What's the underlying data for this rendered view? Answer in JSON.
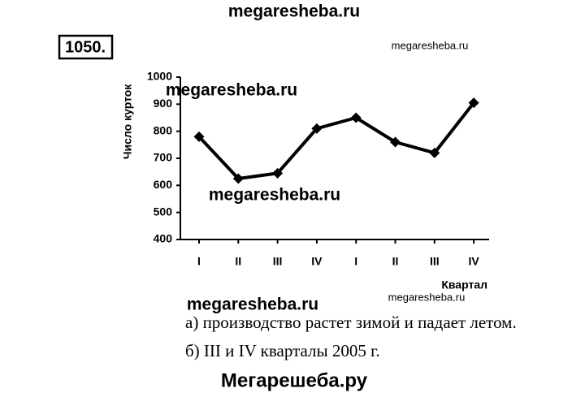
{
  "watermarks": [
    "megaresheba.ru",
    "megaresheba.ru",
    "megaresheba.ru",
    "megaresheba.ru",
    "megaresheba.ru",
    "megaresheba.ru"
  ],
  "problem_number": "1050.",
  "chart_data": {
    "type": "line",
    "ylabel": "Число курток",
    "xlabel": "Квартал",
    "categories": [
      "I",
      "II",
      "III",
      "IV",
      "I",
      "II",
      "III",
      "IV"
    ],
    "series": [
      {
        "name": null,
        "color": "#000000",
        "values": [
          780,
          625,
          645,
          810,
          850,
          760,
          720,
          905
        ]
      }
    ],
    "ylim": [
      400,
      1000
    ],
    "yticks": [
      400,
      500,
      600,
      700,
      800,
      900,
      1000
    ],
    "grid": false
  },
  "answers": [
    "а) производство растет зимой и падает летом.",
    "б) III и IV кварталы 2005 г."
  ],
  "footer": "Мегарешеба.ру"
}
